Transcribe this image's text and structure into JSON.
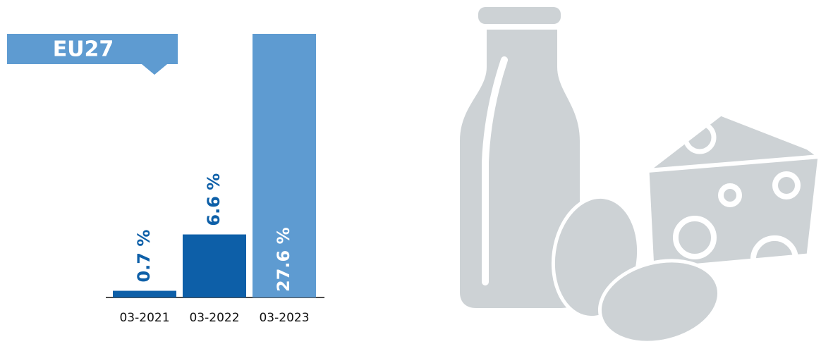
{
  "chart_data": {
    "type": "bar",
    "title": "EU27",
    "categories": [
      "03-2021",
      "03-2022",
      "03-2023"
    ],
    "values": [
      0.7,
      6.6,
      27.6
    ],
    "value_labels": [
      "0.7 %",
      "6.6 %",
      "27.6 %"
    ],
    "colors": [
      "#0d5fa8",
      "#0d5fa8",
      "#5e9bd1"
    ]
  }
}
